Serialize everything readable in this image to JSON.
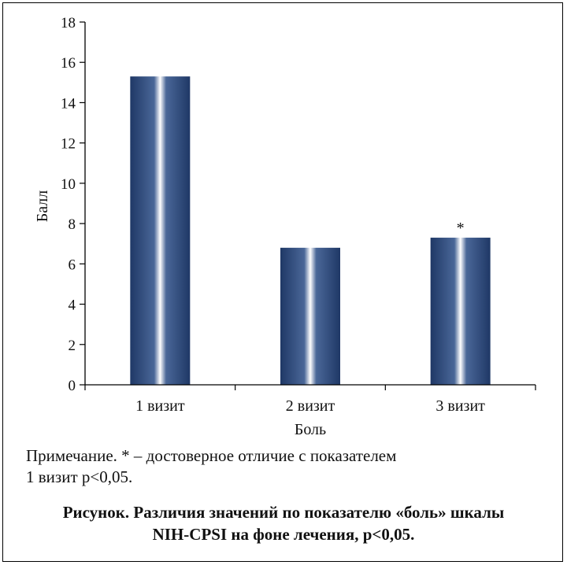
{
  "chart_data": {
    "type": "bar",
    "categories": [
      "1 визит",
      "2 визит",
      "3 визит"
    ],
    "values": [
      15.3,
      6.8,
      7.3
    ],
    "annotations": [
      "",
      "",
      "*"
    ],
    "xlabel": "Боль",
    "ylabel": "Балл",
    "ylim": [
      0,
      18
    ],
    "yticks": [
      "0",
      "2",
      "4",
      "6",
      "8",
      "10",
      "12",
      "14",
      "16",
      "18"
    ],
    "grid": false,
    "bar_color": "#1f3866",
    "bar_highlight": "#ffffff"
  },
  "note": {
    "line1": "Примечание. * – достоверное отличие с показателем",
    "line2": "1 визит p<0,05."
  },
  "caption": {
    "line1": "Рисунок. Различия значений по показателю «боль» шкалы",
    "line2": "NIH-CPSI на фоне лечения, p<0,05."
  }
}
